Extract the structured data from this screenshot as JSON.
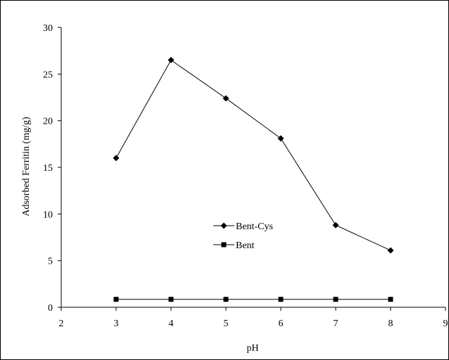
{
  "chart_data": {
    "type": "line",
    "xlabel": "pH",
    "ylabel": "Adsorbed Ferritin (mg/g)",
    "xlim": [
      2,
      9
    ],
    "ylim": [
      0,
      30
    ],
    "x_ticks": [
      "2",
      "3",
      "4",
      "5",
      "6",
      "7",
      "8",
      "9"
    ],
    "y_ticks": [
      "0",
      "5",
      "10",
      "15",
      "20",
      "25",
      "30"
    ],
    "x": [
      3,
      4,
      5,
      6,
      7,
      8
    ],
    "series": [
      {
        "name": "Bent-Cys",
        "marker": "diamond",
        "values": [
          16.0,
          26.5,
          22.4,
          18.1,
          8.8,
          6.1
        ]
      },
      {
        "name": "Bent",
        "marker": "square",
        "values": [
          0.85,
          0.85,
          0.85,
          0.85,
          0.85,
          0.85
        ]
      }
    ],
    "legend_position": "center",
    "grid": false,
    "colors": {
      "line": "#000000",
      "marker": "#000000"
    }
  }
}
